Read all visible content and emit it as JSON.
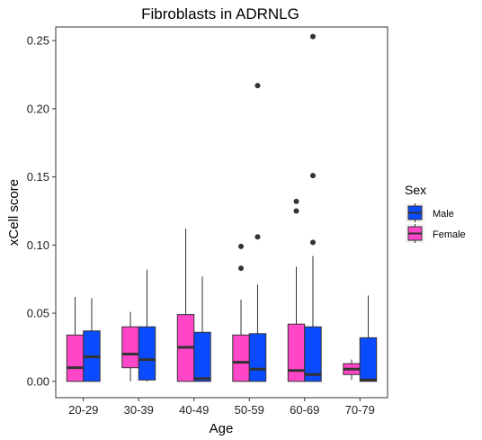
{
  "chart_data": {
    "type": "boxplot",
    "title": "Fibroblasts in ADRNLG",
    "xlabel": "Age",
    "ylabel": "xCell score",
    "ylim": [
      -0.012,
      0.26
    ],
    "yticks": [
      "0.00",
      "0.05",
      "0.10",
      "0.15",
      "0.20",
      "0.25"
    ],
    "categories": [
      "20-29",
      "30-39",
      "40-49",
      "50-59",
      "60-69",
      "70-79"
    ],
    "legend": {
      "title": "Sex",
      "position": "right",
      "entries": [
        {
          "label": "Male",
          "color": "#0a4bff"
        },
        {
          "label": "Female",
          "color": "#ff45c8"
        }
      ]
    },
    "series": [
      {
        "name": "Female",
        "color": "#ff45c8",
        "boxes": [
          {
            "min": 0.0,
            "q1": 0.0,
            "median": 0.01,
            "q3": 0.034,
            "max": 0.062,
            "outliers": []
          },
          {
            "min": 0.0,
            "q1": 0.01,
            "median": 0.02,
            "q3": 0.04,
            "max": 0.051,
            "outliers": []
          },
          {
            "min": 0.0,
            "q1": 0.0,
            "median": 0.025,
            "q3": 0.049,
            "max": 0.112,
            "outliers": []
          },
          {
            "min": 0.0,
            "q1": 0.0,
            "median": 0.014,
            "q3": 0.034,
            "max": 0.06,
            "outliers": [
              0.083,
              0.099
            ]
          },
          {
            "min": 0.0,
            "q1": 0.0,
            "median": 0.008,
            "q3": 0.042,
            "max": 0.084,
            "outliers": [
              0.125,
              0.132
            ]
          },
          {
            "min": 0.001,
            "q1": 0.005,
            "median": 0.009,
            "q3": 0.013,
            "max": 0.016,
            "outliers": []
          }
        ]
      },
      {
        "name": "Male",
        "color": "#0a4bff",
        "boxes": [
          {
            "min": 0.0,
            "q1": 0.0,
            "median": 0.018,
            "q3": 0.037,
            "max": 0.061,
            "outliers": []
          },
          {
            "min": 0.0,
            "q1": 0.001,
            "median": 0.016,
            "q3": 0.04,
            "max": 0.082,
            "outliers": []
          },
          {
            "min": 0.0,
            "q1": 0.0,
            "median": 0.002,
            "q3": 0.036,
            "max": 0.077,
            "outliers": []
          },
          {
            "min": 0.0,
            "q1": 0.0,
            "median": 0.009,
            "q3": 0.035,
            "max": 0.071,
            "outliers": [
              0.106,
              0.217
            ]
          },
          {
            "min": 0.0,
            "q1": 0.0,
            "median": 0.005,
            "q3": 0.04,
            "max": 0.092,
            "outliers": [
              0.102,
              0.151,
              0.253
            ]
          },
          {
            "min": 0.0,
            "q1": 0.0,
            "median": 0.001,
            "q3": 0.032,
            "max": 0.063,
            "outliers": []
          }
        ]
      }
    ]
  }
}
